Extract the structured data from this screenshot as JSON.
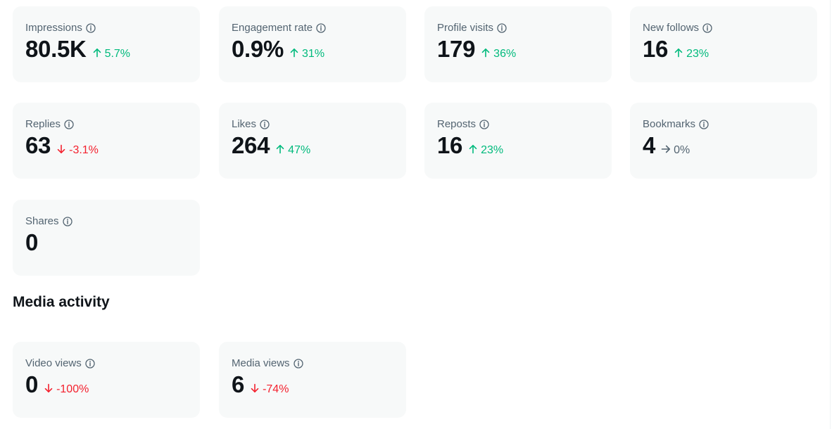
{
  "overview_metrics": [
    {
      "label": "Impressions",
      "value": "80.5K",
      "change": "5.7%",
      "trend": "up"
    },
    {
      "label": "Engagement rate",
      "value": "0.9%",
      "change": "31%",
      "trend": "up"
    },
    {
      "label": "Profile visits",
      "value": "179",
      "change": "36%",
      "trend": "up"
    },
    {
      "label": "New follows",
      "value": "16",
      "change": "23%",
      "trend": "up"
    },
    {
      "label": "Replies",
      "value": "63",
      "change": "-3.1%",
      "trend": "down"
    },
    {
      "label": "Likes",
      "value": "264",
      "change": "47%",
      "trend": "up"
    },
    {
      "label": "Reposts",
      "value": "16",
      "change": "23%",
      "trend": "up"
    },
    {
      "label": "Bookmarks",
      "value": "4",
      "change": "0%",
      "trend": "flat"
    },
    {
      "label": "Shares",
      "value": "0",
      "change": "",
      "trend": "none"
    }
  ],
  "media_section": {
    "title": "Media activity",
    "metrics": [
      {
        "label": "Video views",
        "value": "0",
        "change": "-100%",
        "trend": "down"
      },
      {
        "label": "Media views",
        "value": "6",
        "change": "-74%",
        "trend": "down"
      }
    ]
  },
  "colors": {
    "card_background": "#f7f9f9",
    "positive": "#00ba7c",
    "negative": "#f4212e",
    "neutral": "#536471",
    "primary_text": "#0f1419"
  },
  "icons": {
    "info": "info-circle-icon",
    "up": "arrow-up-icon",
    "down": "arrow-down-icon",
    "flat": "arrow-right-icon"
  }
}
